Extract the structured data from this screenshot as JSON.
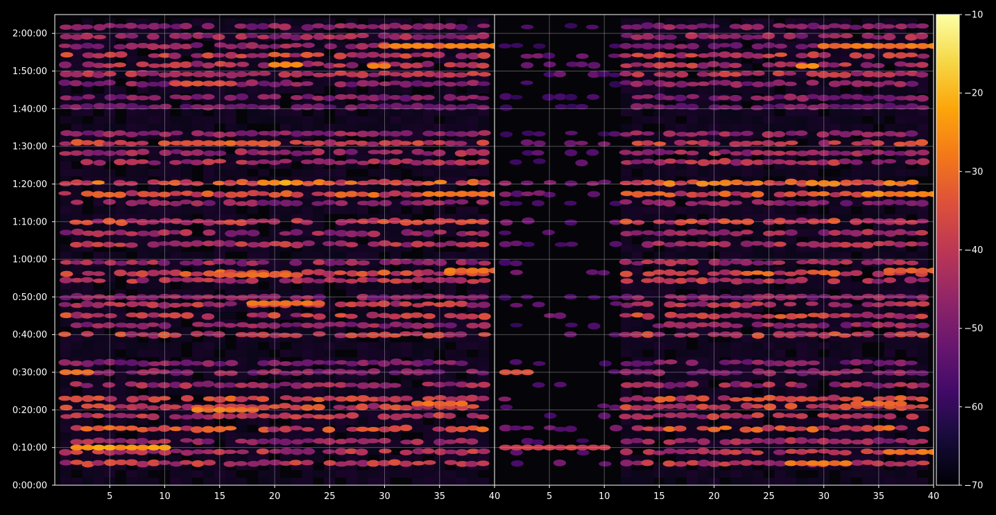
{
  "chart_data": {
    "type": "heatmap",
    "colormap": "inferno",
    "background": "#000000",
    "grid": true,
    "panels": [
      {
        "name": "",
        "x_range": [
          1,
          40
        ],
        "x_ticks": [
          5,
          10,
          15,
          20,
          25,
          30,
          35,
          40
        ]
      },
      {
        "name": "",
        "x_range": [
          1,
          40
        ],
        "x_ticks": [
          5,
          10,
          15,
          20,
          25,
          30,
          35,
          40
        ]
      }
    ],
    "y_axis": {
      "range_seconds": [
        0,
        7500
      ],
      "ticks": [
        {
          "value": 0,
          "label": "0:00:00"
        },
        {
          "value": 600,
          "label": "0:10:00"
        },
        {
          "value": 1200,
          "label": "0:20:00"
        },
        {
          "value": 1800,
          "label": "0:30:00"
        },
        {
          "value": 2400,
          "label": "0:40:00"
        },
        {
          "value": 3000,
          "label": "0:50:00"
        },
        {
          "value": 3600,
          "label": "1:00:00"
        },
        {
          "value": 4200,
          "label": "1:10:00"
        },
        {
          "value": 4800,
          "label": "1:20:00"
        },
        {
          "value": 5400,
          "label": "1:30:00"
        },
        {
          "value": 6000,
          "label": "1:40:00"
        },
        {
          "value": 6600,
          "label": "1:50:00"
        },
        {
          "value": 7200,
          "label": "2:00:00"
        }
      ]
    },
    "colorbar": {
      "range": [
        -70,
        -10
      ],
      "ticks": [
        -70,
        -60,
        -50,
        -40,
        -30,
        -20,
        -10
      ],
      "tick_labels": [
        "−70",
        "−60",
        "−50",
        "−40",
        "−30",
        "−20",
        "−10"
      ]
    },
    "bands": [
      {
        "t": 350,
        "lvl": 0.52
      },
      {
        "t": 530,
        "lvl": 0.5
      },
      {
        "t": 700,
        "lvl": 0.45
      },
      {
        "t": 900,
        "lvl": 0.6
      },
      {
        "t": 1100,
        "lvl": 0.5
      },
      {
        "t": 1250,
        "lvl": 0.55
      },
      {
        "t": 1380,
        "lvl": 0.58
      },
      {
        "t": 1600,
        "lvl": 0.45
      },
      {
        "t": 1800,
        "lvl": 0.4
      },
      {
        "t": 1950,
        "lvl": 0.38
      },
      {
        "t": 2400,
        "lvl": 0.55
      },
      {
        "t": 2550,
        "lvl": 0.42
      },
      {
        "t": 2700,
        "lvl": 0.56
      },
      {
        "t": 2880,
        "lvl": 0.5
      },
      {
        "t": 3000,
        "lvl": 0.4
      },
      {
        "t": 3260,
        "lvl": 0.5
      },
      {
        "t": 3380,
        "lvl": 0.6
      },
      {
        "t": 3550,
        "lvl": 0.45
      },
      {
        "t": 3840,
        "lvl": 0.5
      },
      {
        "t": 4020,
        "lvl": 0.45
      },
      {
        "t": 4200,
        "lvl": 0.55
      },
      {
        "t": 4500,
        "lvl": 0.4
      },
      {
        "t": 4640,
        "lvl": 0.6
      },
      {
        "t": 4820,
        "lvl": 0.65
      },
      {
        "t": 5150,
        "lvl": 0.48
      },
      {
        "t": 5300,
        "lvl": 0.45
      },
      {
        "t": 5450,
        "lvl": 0.55
      },
      {
        "t": 5600,
        "lvl": 0.42
      },
      {
        "t": 6030,
        "lvl": 0.35
      },
      {
        "t": 6180,
        "lvl": 0.38
      },
      {
        "t": 6400,
        "lvl": 0.4
      },
      {
        "t": 6550,
        "lvl": 0.5
      },
      {
        "t": 6700,
        "lvl": 0.5
      },
      {
        "t": 6850,
        "lvl": 0.55
      },
      {
        "t": 7000,
        "lvl": 0.42
      },
      {
        "t": 7150,
        "lvl": 0.45
      },
      {
        "t": 7310,
        "lvl": 0.4
      }
    ],
    "hotspots": [
      {
        "panel": 0,
        "t": 600,
        "x0": 2,
        "x1": 10,
        "lvl": 0.8
      },
      {
        "panel": 0,
        "t": 1200,
        "x0": 13,
        "x1": 18,
        "lvl": 0.7
      },
      {
        "panel": 0,
        "t": 2900,
        "x0": 18,
        "x1": 24,
        "lvl": 0.68
      },
      {
        "panel": 0,
        "t": 3350,
        "x0": 15,
        "x1": 22,
        "lvl": 0.66
      },
      {
        "panel": 0,
        "t": 4820,
        "x0": 19,
        "x1": 22,
        "lvl": 0.8
      },
      {
        "panel": 0,
        "t": 5450,
        "x0": 12,
        "x1": 20,
        "lvl": 0.65
      },
      {
        "panel": 0,
        "t": 6400,
        "x0": 11,
        "x1": 16,
        "lvl": 0.6
      },
      {
        "panel": 0,
        "t": 6700,
        "x0": 20,
        "x1": 22,
        "lvl": 0.75
      },
      {
        "panel": 0,
        "t": 6680,
        "x0": 29,
        "x1": 30,
        "lvl": 0.78
      },
      {
        "panel": 0,
        "t": 7000,
        "x0": 30,
        "x1": 40,
        "lvl": 0.72
      },
      {
        "panel": 0,
        "t": 4640,
        "x0": 34,
        "x1": 40,
        "lvl": 0.72
      },
      {
        "panel": 0,
        "t": 3420,
        "x0": 36,
        "x1": 40,
        "lvl": 0.7
      },
      {
        "panel": 0,
        "t": 1300,
        "x0": 33,
        "x1": 37,
        "lvl": 0.7
      },
      {
        "panel": 0,
        "t": 1800,
        "x0": 1,
        "x1": 3,
        "lvl": 0.66
      },
      {
        "panel": 1,
        "t": 600,
        "x0": 1,
        "x1": 10,
        "lvl": 0.55
      },
      {
        "panel": 1,
        "t": 350,
        "x0": 27,
        "x1": 32,
        "lvl": 0.7
      },
      {
        "panel": 1,
        "t": 530,
        "x0": 36,
        "x1": 40,
        "lvl": 0.68
      },
      {
        "panel": 1,
        "t": 1800,
        "x0": 1,
        "x1": 3,
        "lvl": 0.6
      },
      {
        "panel": 1,
        "t": 6680,
        "x0": 28,
        "x1": 29,
        "lvl": 0.78
      },
      {
        "panel": 1,
        "t": 7000,
        "x0": 30,
        "x1": 40,
        "lvl": 0.7
      },
      {
        "panel": 1,
        "t": 4640,
        "x0": 34,
        "x1": 40,
        "lvl": 0.72
      },
      {
        "panel": 1,
        "t": 1300,
        "x0": 33,
        "x1": 37,
        "lvl": 0.68
      },
      {
        "panel": 1,
        "t": 3420,
        "x0": 36,
        "x1": 40,
        "lvl": 0.66
      }
    ],
    "panel_activity": [
      {
        "panel": 0,
        "from_x": 1,
        "to_x": 40,
        "time_from": 0,
        "time_to": 7500
      },
      {
        "panel": 1,
        "from_x": 1,
        "to_x": 40,
        "time_from": 0,
        "time_to": 7500,
        "sparse_left_until_x": 12
      }
    ]
  }
}
